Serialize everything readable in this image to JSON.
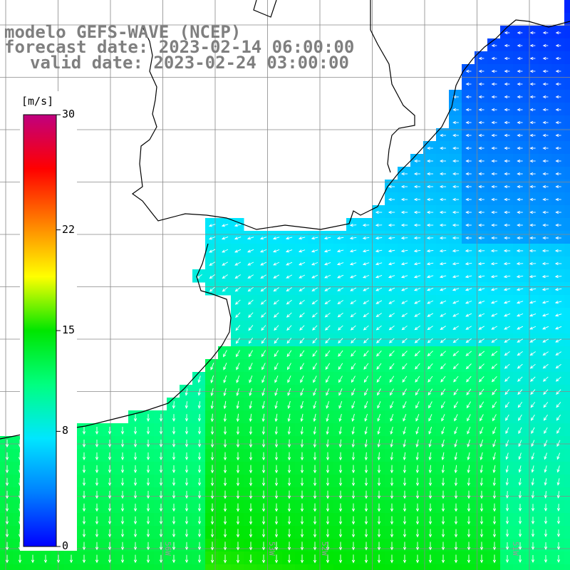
{
  "title": {
    "model": "modelo GEFS-WAVE (NCEP)",
    "forecast": "forecast date: 2023-02-14 06:00:00",
    "valid": "valid date: 2023-02-24 03:00:00"
  },
  "colorbar": {
    "unit": "[m/s]",
    "ticks": [
      "30",
      "22",
      "15",
      "8",
      "0"
    ],
    "tick_values": [
      30,
      22,
      15,
      8,
      0
    ],
    "stops": [
      "#0000ff",
      "#0080ff",
      "#00e6ff",
      "#00ff80",
      "#00e600",
      "#ffff00",
      "#ff8000",
      "#ff0000",
      "#c0007f"
    ]
  },
  "map": {
    "ocean_colors": {
      "low": "#1e64f0",
      "mid": "#00c8ff",
      "high": "#00e03c"
    },
    "land_color": "#ffffff",
    "gridline_color": "#888888",
    "arrow_color": "#ffffff",
    "lon_labels": [
      "56W",
      "53W",
      "52W",
      "51W"
    ]
  }
}
